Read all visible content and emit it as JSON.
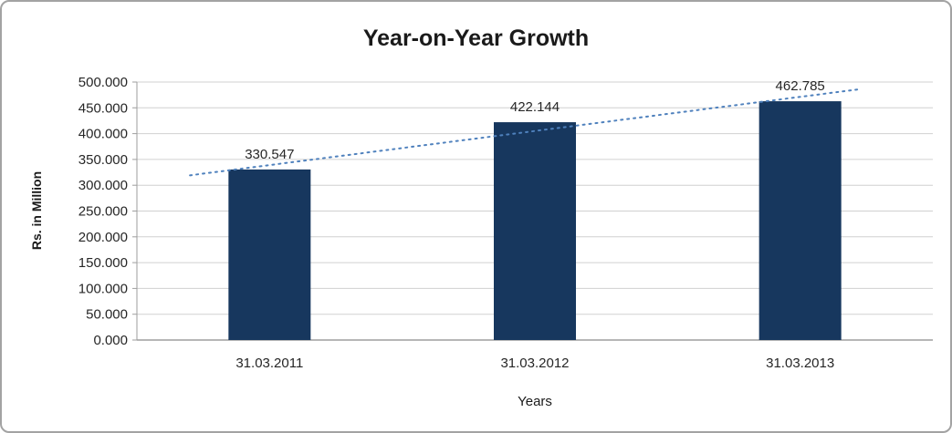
{
  "chart_data": {
    "type": "bar",
    "title": "Year-on-Year Growth",
    "xlabel": "Years",
    "ylabel": "Rs. in Million",
    "categories": [
      "31.03.2011",
      "31.03.2012",
      "31.03.2013"
    ],
    "values": [
      330.547,
      422.144,
      462.785
    ],
    "data_labels": [
      "330.547",
      "422.144",
      "462.785"
    ],
    "ylim": [
      0,
      500
    ],
    "ytick_step": 50,
    "ytick_labels": [
      "0.000",
      "50.000",
      "100.000",
      "150.000",
      "200.000",
      "250.000",
      "300.000",
      "350.000",
      "400.000",
      "450.000",
      "500.000"
    ],
    "grid": "horizontal",
    "legend": "none",
    "trendline": {
      "type": "linear",
      "style": "dotted",
      "color": "#4f81bd"
    },
    "colors": {
      "bar": "#17375e",
      "grid": "#d0d0d0",
      "axis": "#9e9e9e",
      "text": "#262626",
      "title": "#1a1a1a"
    }
  }
}
